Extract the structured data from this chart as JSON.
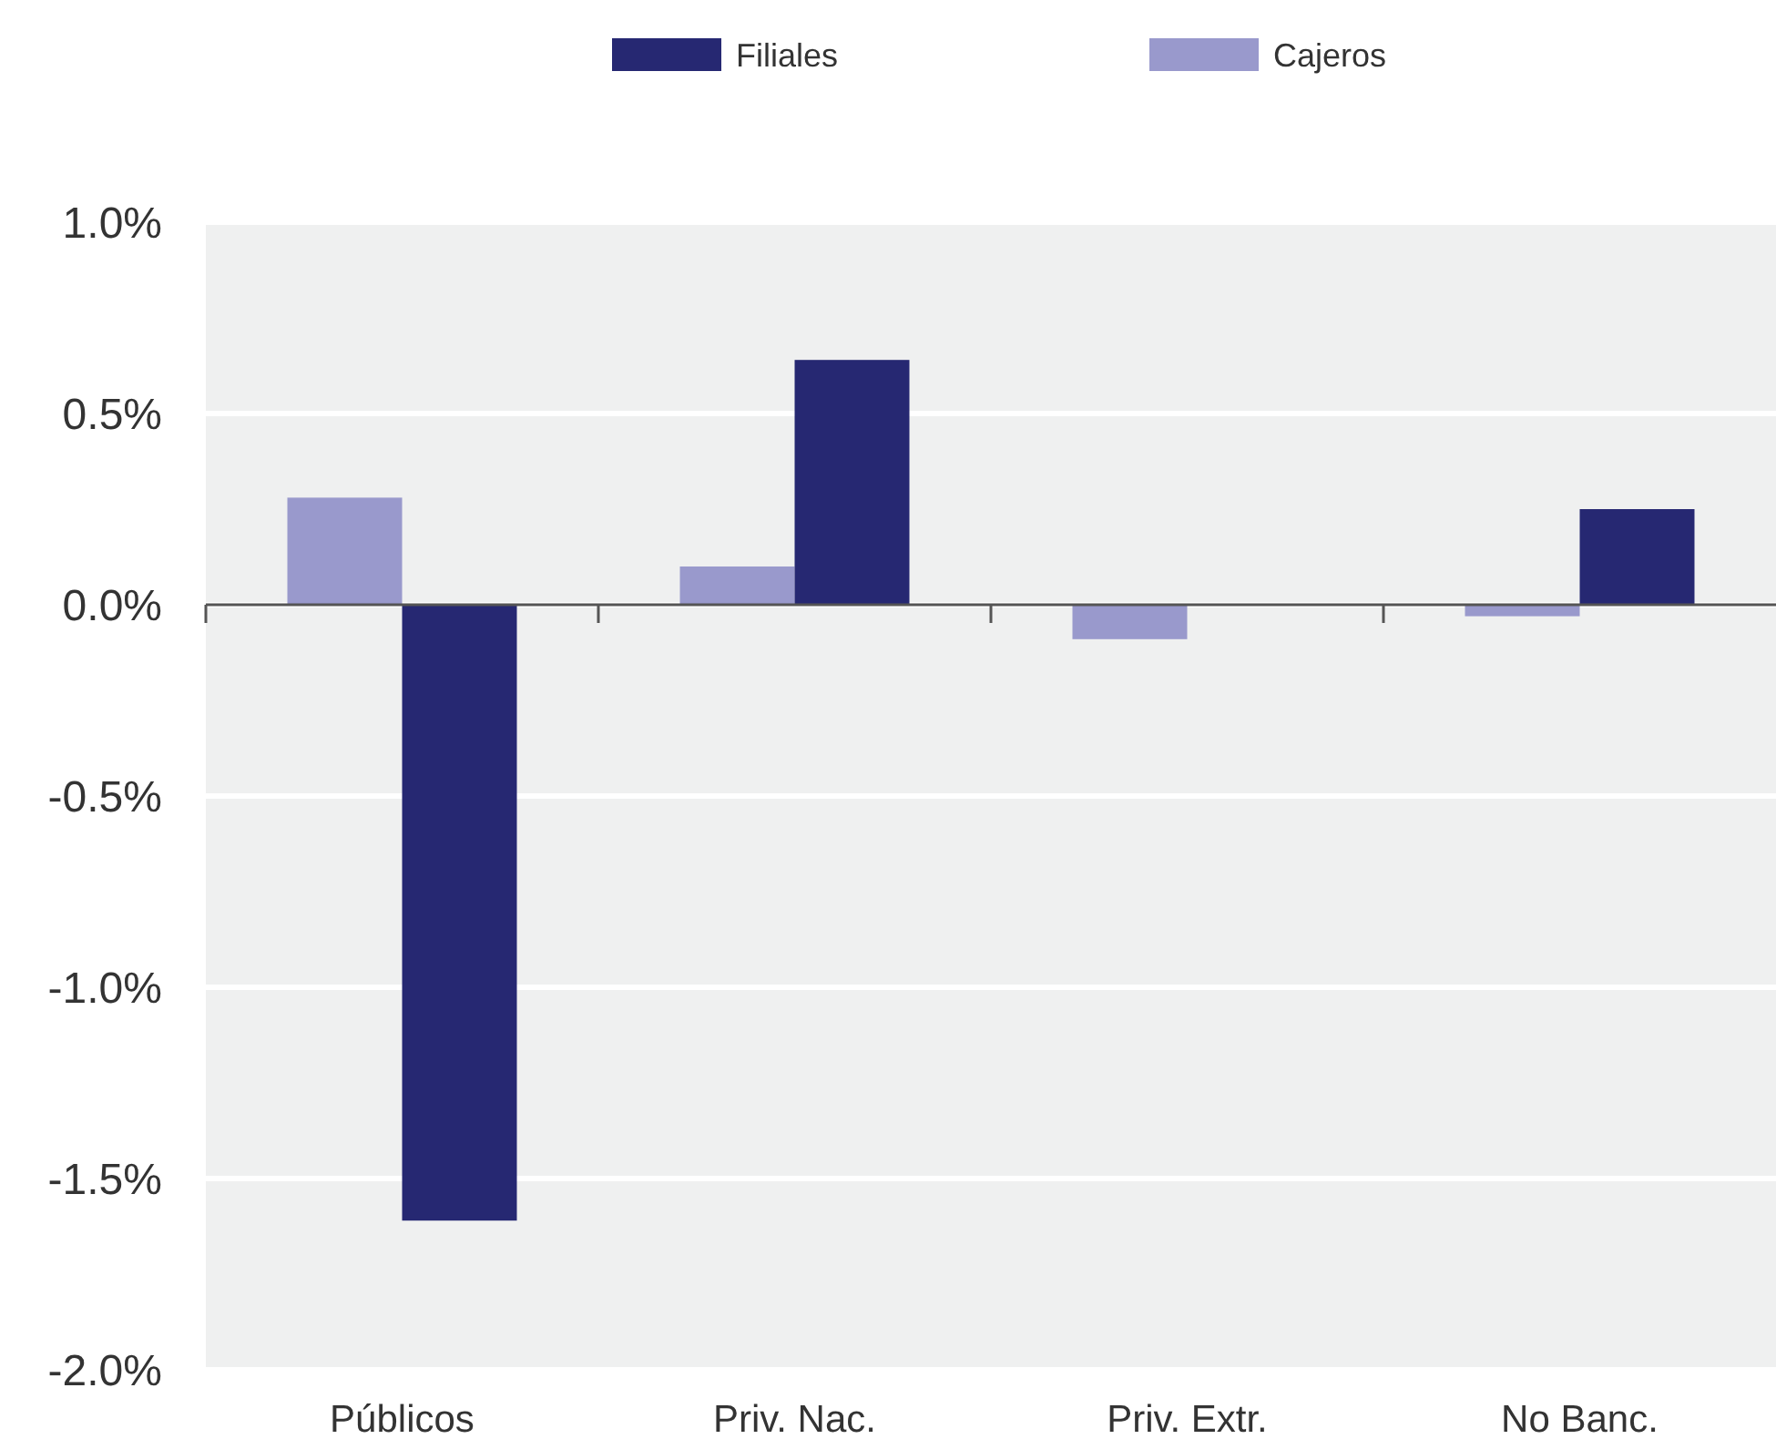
{
  "chart_data": {
    "type": "bar",
    "categories": [
      "Públicos",
      "Priv. Nac.",
      "Priv. Extr.",
      "No Banc."
    ],
    "series": [
      {
        "name": "Cajeros",
        "color": "#9999cc",
        "values": [
          0.28,
          0.1,
          -0.09,
          -0.03
        ]
      },
      {
        "name": "Filiales",
        "color": "#262872",
        "values": [
          -1.61,
          0.64,
          0,
          0.25
        ]
      }
    ],
    "ylim": [
      -2,
      1
    ],
    "yticks": [
      {
        "value": -2,
        "label": "-2.0%"
      },
      {
        "value": -1.5,
        "label": "-1.5%"
      },
      {
        "value": -1,
        "label": "-1.0%"
      },
      {
        "value": -0.5,
        "label": "-0.5%"
      },
      {
        "value": 0,
        "label": "0.0%"
      },
      {
        "value": 0.5,
        "label": "0.5%"
      },
      {
        "value": 1,
        "label": "1.0%"
      }
    ],
    "grid": "y",
    "legend": "top"
  }
}
